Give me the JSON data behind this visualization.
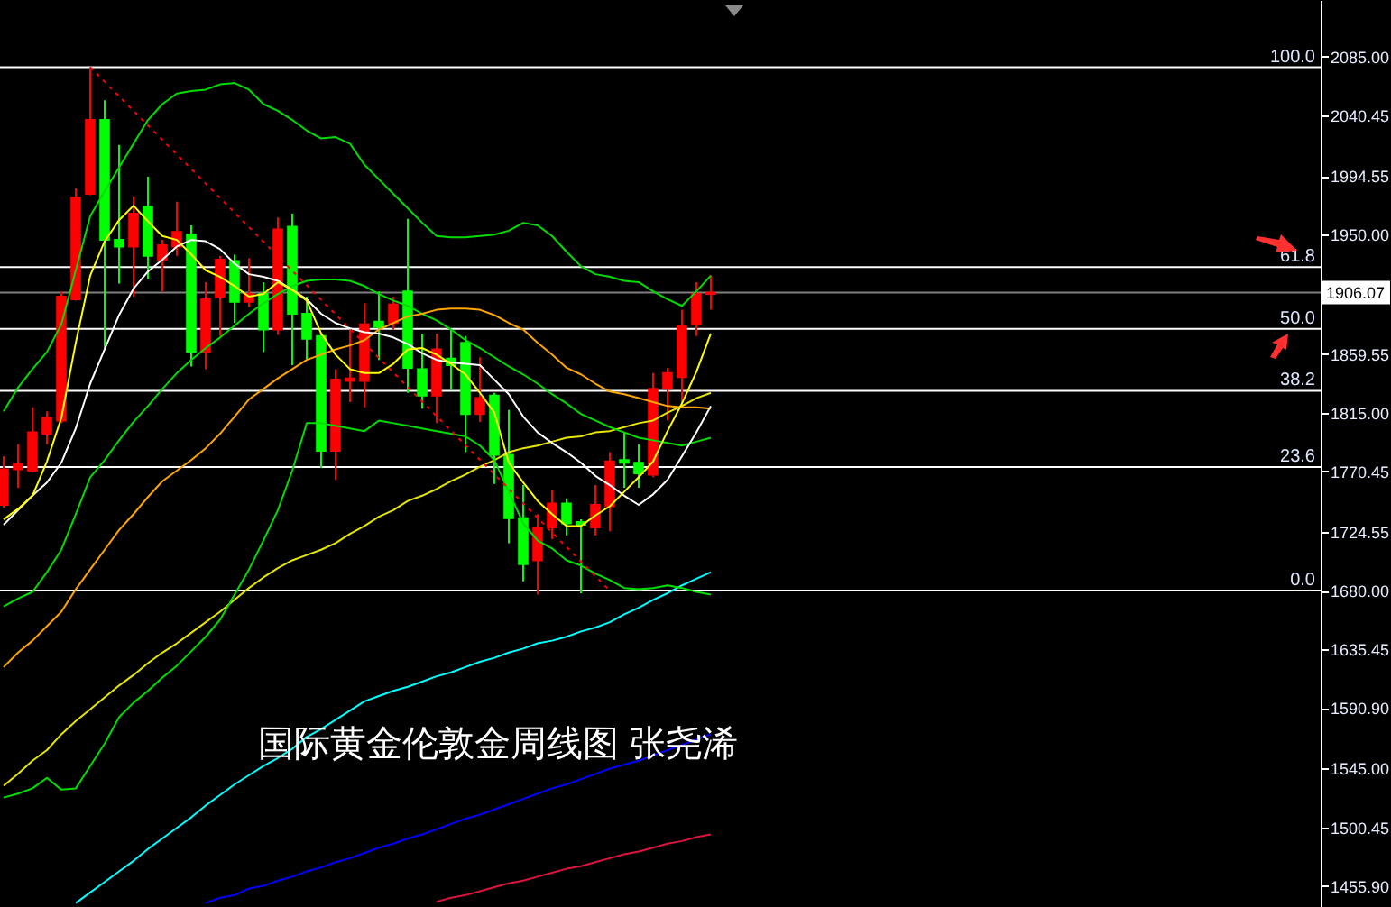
{
  "chart_data": {
    "type": "candlestick",
    "annotations": [
      "国际黄金伦敦金周线图 张尧浠",
      {
        "text": "100.0",
        "y": 2077
      },
      {
        "text": "61.8",
        "y": 1925.4
      },
      {
        "text": "50.0",
        "y": 1878.5
      },
      {
        "text": "38.2",
        "y": 1831.6
      },
      {
        "text": "23.6",
        "y": 1773.7
      },
      {
        "text": "0.0",
        "y": 1680
      }
    ],
    "categories": [
      null,
      null,
      null,
      null,
      null,
      null,
      null,
      null,
      null,
      null,
      null,
      null,
      null,
      null,
      null,
      null,
      null,
      null,
      null,
      null,
      null,
      null,
      null,
      null,
      null,
      null,
      null,
      null,
      null,
      null,
      null,
      null,
      null,
      null,
      null,
      null,
      null,
      null,
      null,
      null,
      null,
      null,
      null,
      null,
      null,
      null,
      null,
      null,
      null,
      null
    ],
    "ohlc": [
      [
        1745,
        1782,
        1743,
        1772
      ],
      [
        1772,
        1791,
        1758,
        1776
      ],
      [
        1771,
        1819,
        1770,
        1800
      ],
      [
        1799,
        1816,
        1791,
        1811
      ],
      [
        1809,
        1907,
        1807,
        1903
      ],
      [
        1901,
        1985,
        1900,
        1978
      ],
      [
        1981,
        2077,
        1980,
        2037
      ],
      [
        2037,
        2052,
        1864,
        1946
      ],
      [
        1946,
        2018,
        1913,
        1941
      ],
      [
        1941,
        1979,
        1903,
        1966
      ],
      [
        1971,
        1994,
        1916,
        1934
      ],
      [
        1931,
        1946,
        1907,
        1942
      ],
      [
        1941,
        1975,
        1934,
        1952
      ],
      [
        1950,
        1957,
        1850,
        1861
      ],
      [
        1861,
        1914,
        1848,
        1901
      ],
      [
        1903,
        1934,
        1873,
        1931
      ],
      [
        1930,
        1935,
        1883,
        1899
      ],
      [
        1899,
        1932,
        1895,
        1905
      ],
      [
        1905,
        1914,
        1861,
        1878
      ],
      [
        1878,
        1963,
        1874,
        1954
      ],
      [
        1956,
        1966,
        1851,
        1890
      ],
      [
        1890,
        1903,
        1855,
        1871
      ],
      [
        1873,
        1875,
        1773,
        1786
      ],
      [
        1786,
        1848,
        1764,
        1840
      ],
      [
        1839,
        1878,
        1823,
        1841
      ],
      [
        1839,
        1898,
        1819,
        1882
      ],
      [
        1884,
        1907,
        1855,
        1880
      ],
      [
        1883,
        1903,
        1878,
        1897
      ],
      [
        1907,
        1962,
        1830,
        1849
      ],
      [
        1848,
        1875,
        1818,
        1828
      ],
      [
        1828,
        1875,
        1807,
        1863
      ],
      [
        1856,
        1878,
        1832,
        1851
      ],
      [
        1868,
        1873,
        1785,
        1814
      ],
      [
        1814,
        1857,
        1808,
        1826
      ],
      [
        1828,
        1830,
        1761,
        1783
      ],
      [
        1783,
        1817,
        1716,
        1735
      ],
      [
        1735,
        1760,
        1687,
        1700
      ],
      [
        1703,
        1738,
        1677,
        1728
      ],
      [
        1728,
        1756,
        1719,
        1746
      ],
      [
        1746,
        1750,
        1722,
        1731
      ],
      [
        1732,
        1734,
        1678,
        1730
      ],
      [
        1728,
        1760,
        1722,
        1745
      ],
      [
        1744,
        1785,
        1725,
        1778
      ],
      [
        1779,
        1800,
        1758,
        1777
      ],
      [
        1777,
        1791,
        1758,
        1769
      ],
      [
        1768,
        1845,
        1766,
        1833
      ],
      [
        1833,
        1849,
        1809,
        1845
      ],
      [
        1842,
        1893,
        1820,
        1881
      ],
      [
        1882,
        1914,
        1873,
        1905
      ],
      [
        1905,
        1919,
        1893,
        1906
      ]
    ],
    "colors": [
      "#ff0000",
      "#ff0000",
      "#ff0000",
      "#ff0000",
      "#ff0000",
      "#ff0000",
      "#ff0000",
      "#00ff00",
      "#00ff00",
      "#ff0000",
      "#00ff00",
      "#ff0000",
      "#ff0000",
      "#00ff00",
      "#ff0000",
      "#ff0000",
      "#00ff00",
      "#ff0000",
      "#00ff00",
      "#ff0000",
      "#00ff00",
      "#00ff00",
      "#00ff00",
      "#ff0000",
      "#ff0000",
      "#ff0000",
      "#00ff00",
      "#ff0000",
      "#00ff00",
      "#00ff00",
      "#ff0000",
      "#00ff00",
      "#00ff00",
      "#ff0000",
      "#00ff00",
      "#00ff00",
      "#00ff00",
      "#ff0000",
      "#ff0000",
      "#00ff00",
      "#00ff00",
      "#ff0000",
      "#ff0000",
      "#00ff00",
      "#00ff00",
      "#ff0000",
      "#ff0000",
      "#ff0000",
      "#ff0000",
      "#ff0000"
    ],
    "series": [
      {
        "type": "line",
        "color": "#dc143c",
        "values": [
          null,
          null,
          null,
          null,
          null,
          null,
          null,
          null,
          null,
          null,
          null,
          null,
          null,
          null,
          null,
          null,
          null,
          null,
          null,
          null,
          null,
          null,
          null,
          null,
          null,
          null,
          null,
          null,
          null,
          null,
          1444,
          1447,
          1449,
          1452,
          1455,
          1458,
          1460,
          1463,
          1466,
          1469,
          1471,
          1474,
          1477,
          1480,
          1482,
          1485,
          1488,
          1490,
          1493,
          1495
        ]
      },
      {
        "type": "line",
        "color": "#0000ff",
        "values": [
          null,
          null,
          null,
          null,
          null,
          null,
          null,
          null,
          null,
          null,
          null,
          null,
          null,
          null,
          1443,
          1447,
          1449,
          1454,
          1456,
          1460,
          1463,
          1467,
          1470,
          1474,
          1477,
          1481,
          1485,
          1488,
          1492,
          1495,
          1499,
          1503,
          1507,
          1510,
          1514,
          1518,
          1522,
          1526,
          1530,
          1533,
          1537,
          1541,
          1545,
          1548,
          1551,
          1555,
          1559,
          1563,
          1567,
          1571
        ]
      },
      {
        "type": "line",
        "color": "#00ffff",
        "values": [
          null,
          null,
          null,
          null,
          null,
          1443,
          1451,
          1459,
          1467,
          1475,
          1484,
          1492,
          1500,
          1508,
          1517,
          1525,
          1533,
          1540,
          1547,
          1553,
          1560,
          1569,
          1575,
          1582,
          1589,
          1596,
          1600,
          1604,
          1607,
          1611,
          1615,
          1618,
          1622,
          1626,
          1629,
          1633,
          1636,
          1640,
          1642,
          1645,
          1649,
          1652,
          1656,
          1662,
          1667,
          1673,
          1678,
          1684,
          1689,
          1694
        ]
      },
      {
        "type": "line",
        "color": "#e6e600",
        "values": [
          1532,
          1541,
          1551,
          1559,
          1571,
          1581,
          1590,
          1599,
          1608,
          1616,
          1625,
          1633,
          1640,
          1648,
          1656,
          1664,
          1673,
          1682,
          1690,
          1697,
          1703,
          1707,
          1711,
          1716,
          1723,
          1729,
          1736,
          1741,
          1748,
          1752,
          1757,
          1763,
          1768,
          1774,
          1779,
          1785,
          1788,
          1790,
          1793,
          1796,
          1797,
          1800,
          1801,
          1804,
          1807,
          1809,
          1815,
          1820,
          1826,
          1830
        ]
      },
      {
        "type": "line",
        "color": "#00dd00",
        "values": [
          1523,
          1526,
          1530,
          1538,
          1529,
          1530,
          1547,
          1564,
          1584,
          1595,
          1604,
          1614,
          1623,
          1634,
          1645,
          1658,
          1677,
          1696,
          1718,
          1741,
          1771,
          1807,
          1807,
          1805,
          1803,
          1801,
          1809,
          1807,
          1805,
          1803,
          1801,
          1799,
          1797,
          1790,
          1779,
          1755,
          1731,
          1718,
          1712,
          1703,
          1699,
          1693,
          1688,
          1682,
          1681,
          1682,
          1684,
          1682,
          1679,
          1677
        ]
      },
      {
        "type": "line",
        "color": "#00dd00",
        "values": [
          1668,
          1674,
          1679,
          1694,
          1711,
          1738,
          1766,
          1779,
          1794,
          1808,
          1820,
          1833,
          1845,
          1855,
          1864,
          1872,
          1881,
          1890,
          1898,
          1905,
          1911,
          1915,
          1916,
          1916,
          1915,
          1911,
          1905,
          1900,
          1896,
          1890,
          1885,
          1878,
          1870,
          1864,
          1857,
          1850,
          1844,
          1837,
          1829,
          1822,
          1814,
          1809,
          1804,
          1800,
          1796,
          1794,
          1792,
          1790,
          1793,
          1796
        ]
      },
      {
        "type": "line",
        "color": "#00dd00",
        "values": [
          1816,
          1834,
          1848,
          1861,
          1882,
          1923,
          1964,
          1983,
          2001,
          2019,
          2037,
          2049,
          2057,
          2059,
          2060,
          2064,
          2065,
          2060,
          2049,
          2044,
          2037,
          2029,
          2023,
          2024,
          2019,
          2003,
          1992,
          1981,
          1970,
          1959,
          1949,
          1948,
          1948,
          1949,
          1950,
          1953,
          1959,
          1957,
          1949,
          1937,
          1926,
          1920,
          1918,
          1915,
          1914,
          1907,
          1901,
          1896,
          1907,
          1919
        ]
      },
      {
        "type": "line",
        "color": "#ffa500",
        "values": [
          1622,
          1633,
          1642,
          1653,
          1664,
          1681,
          1696,
          1711,
          1726,
          1738,
          1751,
          1763,
          1771,
          1779,
          1788,
          1799,
          1812,
          1825,
          1833,
          1841,
          1848,
          1855,
          1859,
          1863,
          1866,
          1870,
          1878,
          1883,
          1888,
          1890,
          1893,
          1894,
          1894,
          1893,
          1889,
          1883,
          1878,
          1868,
          1859,
          1849,
          1844,
          1837,
          1831,
          1829,
          1826,
          1823,
          1820,
          1819,
          1819,
          1818
        ]
      },
      {
        "type": "line",
        "color": "#ffffff",
        "values": [
          1730,
          1741,
          1752,
          1762,
          1777,
          1803,
          1837,
          1863,
          1889,
          1909,
          1922,
          1931,
          1941,
          1946,
          1945,
          1939,
          1928,
          1920,
          1918,
          1915,
          1908,
          1901,
          1890,
          1883,
          1879,
          1876,
          1875,
          1872,
          1867,
          1860,
          1855,
          1853,
          1852,
          1851,
          1840,
          1829,
          1812,
          1800,
          1792,
          1785,
          1777,
          1767,
          1760,
          1752,
          1745,
          1753,
          1764,
          1782,
          1800,
          1820
        ]
      },
      {
        "type": "line",
        "color": "#ffff00",
        "values": [
          1734,
          1742,
          1752,
          1778,
          1811,
          1868,
          1919,
          1945,
          1961,
          1972,
          1960,
          1949,
          1946,
          1935,
          1923,
          1918,
          1911,
          1903,
          1905,
          1914,
          1908,
          1900,
          1875,
          1859,
          1848,
          1845,
          1845,
          1852,
          1863,
          1864,
          1859,
          1852,
          1844,
          1830,
          1815,
          1777,
          1762,
          1748,
          1738,
          1729,
          1729,
          1737,
          1744,
          1755,
          1766,
          1778,
          1801,
          1822,
          1846,
          1875
        ]
      },
      {
        "type": "line",
        "color": "#ff0000",
        "line_style": "dotted",
        "values": [
          null,
          null,
          null,
          null,
          null,
          null,
          2077,
          null,
          null,
          null,
          null,
          null,
          null,
          null,
          null,
          null,
          null,
          null,
          null,
          null,
          null,
          null,
          null,
          null,
          null,
          null,
          null,
          null,
          null,
          null,
          null,
          null,
          null,
          null,
          null,
          null,
          null,
          null,
          null,
          null,
          null,
          null,
          1680,
          null,
          null,
          null,
          null,
          null,
          null,
          null
        ]
      }
    ],
    "ylim": [
      1440,
      2128
    ],
    "yticks": [
      {
        "value": 2085,
        "label": "2085.00"
      },
      {
        "value": 2040.45,
        "label": "2040.45"
      },
      {
        "value": 1994.55,
        "label": "1994.55"
      },
      {
        "value": 1950,
        "label": "1950.00"
      },
      {
        "value": 1859.55,
        "label": "1859.55"
      },
      {
        "value": 1815,
        "label": "1815.00"
      },
      {
        "value": 1770.45,
        "label": "1770.45"
      },
      {
        "value": 1724.55,
        "label": "1724.55"
      },
      {
        "value": 1680,
        "label": "1680.00"
      },
      {
        "value": 1635.45,
        "label": "1635.45"
      },
      {
        "value": 1590.9,
        "label": "1590.90"
      },
      {
        "value": 1545,
        "label": "1545.00"
      },
      {
        "value": 1500.45,
        "label": "1500.45"
      },
      {
        "value": 1455.9,
        "label": "1455.90"
      }
    ],
    "ref_lines": [
      {
        "axis": "y",
        "value": 2077
      },
      {
        "axis": "y",
        "value": 1925.4
      },
      {
        "axis": "y",
        "value": 1906.07,
        "label": "1906.07",
        "color": "#808080"
      },
      {
        "axis": "y",
        "value": 1878.5
      },
      {
        "axis": "y",
        "value": 1831.6
      },
      {
        "axis": "y",
        "value": 1773.7
      },
      {
        "axis": "y",
        "value": 1680
      }
    ],
    "grid": false,
    "tick_labels": "y"
  }
}
